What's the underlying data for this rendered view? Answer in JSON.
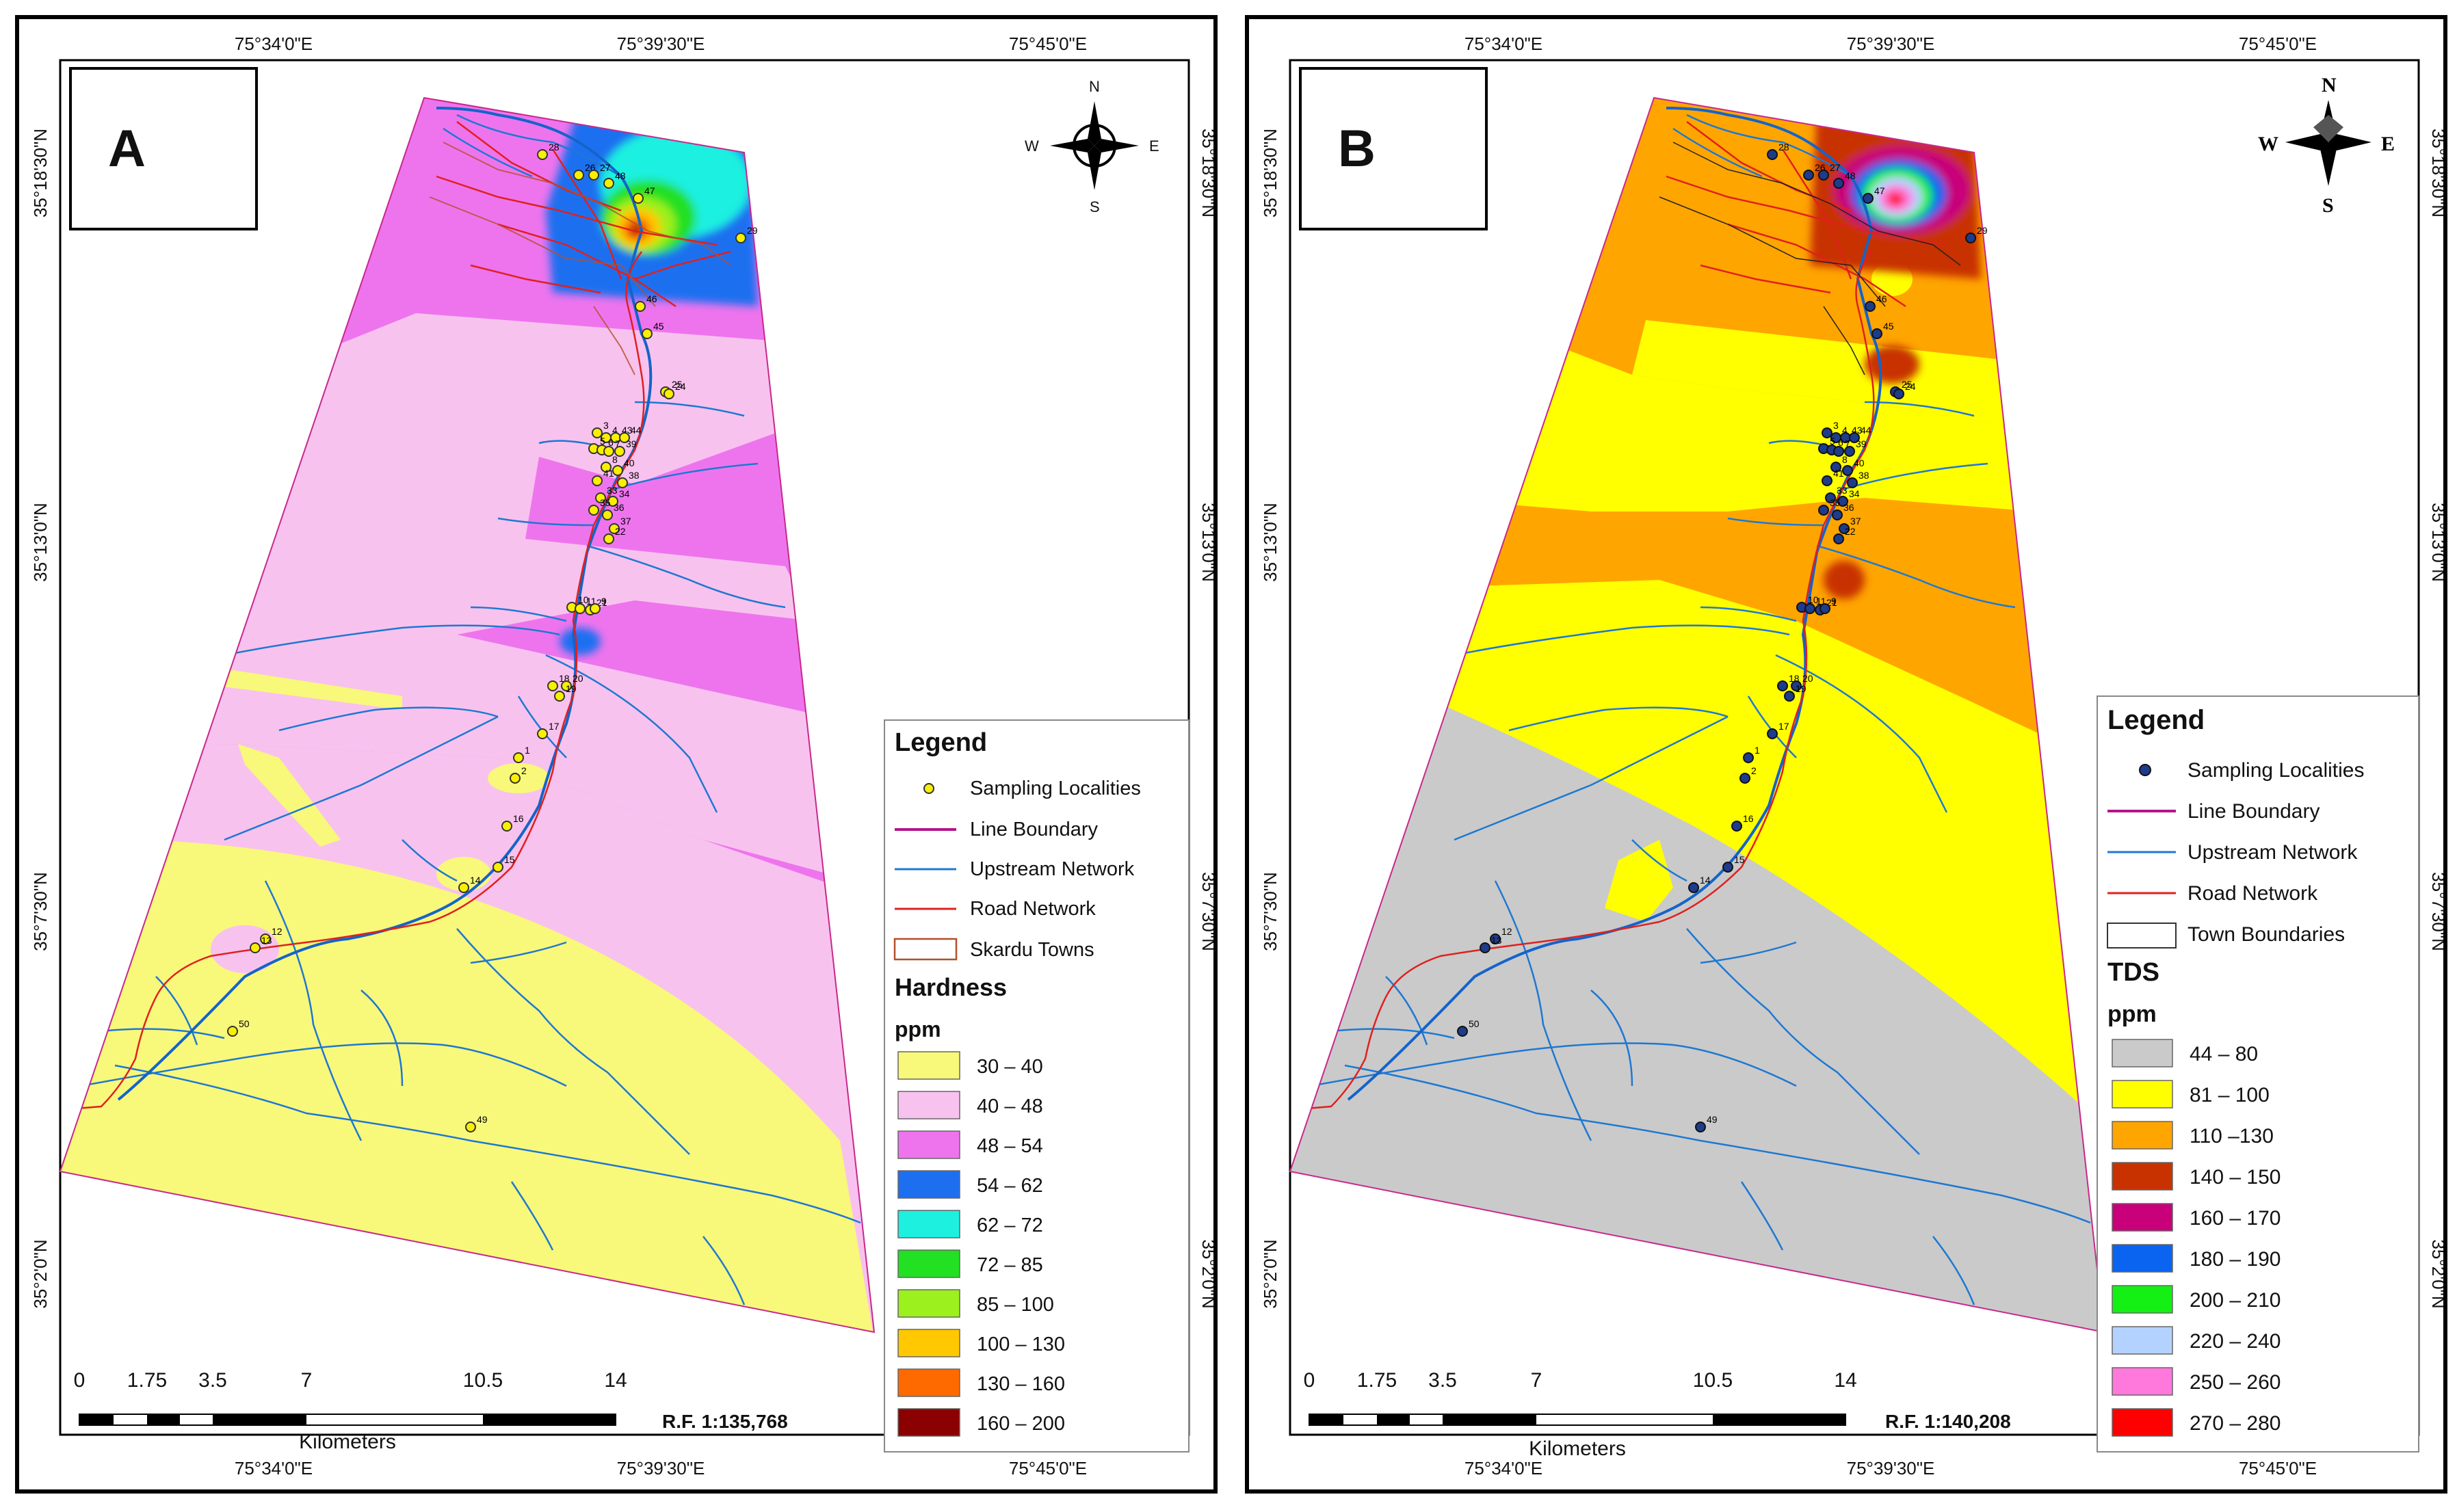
{
  "panels": [
    {
      "id": "A",
      "label": "A",
      "coords": {
        "top": [
          "75°34'0\"E",
          "75°39'30\"E",
          "75°45'0\"E"
        ],
        "bottom": [
          "75°34'0\"E",
          "75°39'30\"E",
          "75°45'0\"E"
        ],
        "left": [
          "35°18'30\"N",
          "35°13'0\"N",
          "35°7'30\"N",
          "35°2'0\"N"
        ],
        "right": [
          "35°18'30\"N",
          "35°13'0\"N",
          "35°7'30\"N",
          "35°2'0\"N"
        ]
      },
      "compass": {
        "n": "N",
        "s": "S",
        "e": "E",
        "w": "W"
      },
      "scale": {
        "ticks": [
          "0",
          "1.75",
          "3.5",
          "7",
          "10.5",
          "14"
        ],
        "unit": "Kilometers",
        "rf": "R.F. 1:135,768"
      },
      "legend": {
        "title": "Legend",
        "items": [
          "Sampling Localities",
          "Line Boundary",
          "Upstream Network",
          "Road Network",
          "Skardu Towns"
        ],
        "param": "Hardness",
        "unit": "ppm",
        "classes": [
          {
            "label": "30 – 40",
            "color": "#f8f87a"
          },
          {
            "label": "40 – 48",
            "color": "#f8c2ee"
          },
          {
            "label": "48 – 54",
            "color": "#ee74ee"
          },
          {
            "label": "54 – 62",
            "color": "#1e6ff0"
          },
          {
            "label": "62 – 72",
            "color": "#1ef0e0"
          },
          {
            "label": "72 – 85",
            "color": "#22e022"
          },
          {
            "label": "85 – 100",
            "color": "#9cf01e"
          },
          {
            "label": "100 – 130",
            "color": "#ffc800"
          },
          {
            "label": "130 – 160",
            "color": "#ff6a00"
          },
          {
            "label": "160 – 200",
            "color": "#8b0000"
          }
        ]
      }
    },
    {
      "id": "B",
      "label": "B",
      "coords": {
        "top": [
          "75°34'0\"E",
          "75°39'30\"E",
          "75°45'0\"E"
        ],
        "bottom": [
          "75°34'0\"E",
          "75°39'30\"E",
          "75°45'0\"E"
        ],
        "left": [
          "35°18'30\"N",
          "35°13'0\"N",
          "35°7'30\"N",
          "35°2'0\"N"
        ],
        "right": [
          "35°18'30\"N",
          "35°13'0\"N",
          "35°7'30\"N",
          "35°2'0\"N"
        ]
      },
      "compass": {
        "n": "N",
        "s": "S",
        "e": "E",
        "w": "W"
      },
      "scale": {
        "ticks": [
          "0",
          "1.75",
          "3.5",
          "7",
          "10.5",
          "14"
        ],
        "unit": "Kilometers",
        "rf": "R.F. 1:140,208"
      },
      "legend": {
        "title": "Legend",
        "items": [
          "Sampling Localities",
          "Line Boundary",
          "Upstream Network",
          "Road Network",
          "Town Boundaries"
        ],
        "param": "TDS",
        "unit": "ppm",
        "classes": [
          {
            "label": "44 – 80",
            "color": "#cacaca"
          },
          {
            "label": "81 – 100",
            "color": "#ffff00"
          },
          {
            "label": "110 –130",
            "color": "#ffa500"
          },
          {
            "label": "140 – 150",
            "color": "#c83200"
          },
          {
            "label": "160 – 170",
            "color": "#c8007a"
          },
          {
            "label": "180 – 190",
            "color": "#0a64f0"
          },
          {
            "label": "200 – 210",
            "color": "#14f014"
          },
          {
            "label": "220 – 240",
            "color": "#b4d2ff"
          },
          {
            "label": "250 – 260",
            "color": "#ff78dc"
          },
          {
            "label": "270 – 280",
            "color": "#ff0000"
          }
        ]
      }
    }
  ],
  "sites": [
    "28",
    "26",
    "27",
    "48",
    "47",
    "29",
    "46",
    "45",
    "25",
    "24",
    "3",
    "4",
    "43",
    "44",
    "5",
    "6",
    "7",
    "39",
    "8",
    "40",
    "41",
    "38",
    "33",
    "34",
    "35",
    "36",
    "37",
    "22",
    "10",
    "11",
    "21",
    "9",
    "18",
    "20",
    "19",
    "17",
    "1",
    "2",
    "16",
    "15",
    "14",
    "12",
    "13",
    "50",
    "49"
  ]
}
